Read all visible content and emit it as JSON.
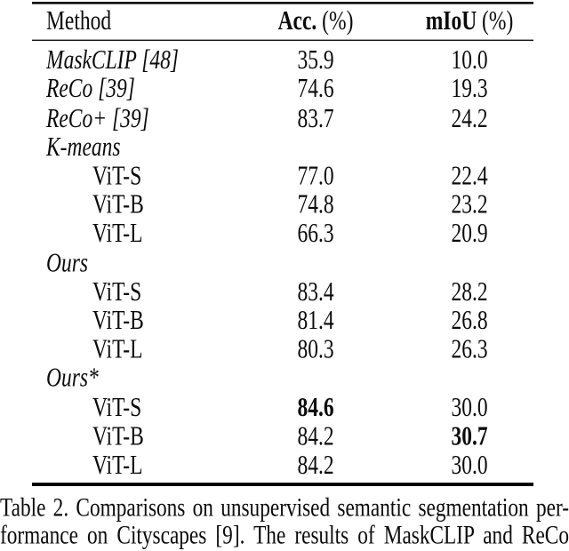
{
  "table": {
    "header": {
      "method": "Method",
      "acc_name": "Acc.",
      "acc_unit": " (%)",
      "miou_name": "mIoU",
      "miou_unit": " (%)"
    },
    "rows": [
      {
        "method": "MaskCLIP [48]",
        "acc": "35.9",
        "miou": "10.0"
      },
      {
        "method": "ReCo [39]",
        "acc": "74.6",
        "miou": "19.3"
      },
      {
        "method": "ReCo+ [39]",
        "acc": "83.7",
        "miou": "24.2"
      },
      {
        "method": "K-means",
        "acc": "",
        "miou": ""
      },
      {
        "method": "ViT-S",
        "acc": "77.0",
        "miou": "22.4"
      },
      {
        "method": "ViT-B",
        "acc": "74.8",
        "miou": "23.2"
      },
      {
        "method": "ViT-L",
        "acc": "66.3",
        "miou": "20.9"
      },
      {
        "method": "Ours",
        "acc": "",
        "miou": ""
      },
      {
        "method": "ViT-S",
        "acc": "83.4",
        "miou": "28.2"
      },
      {
        "method": "ViT-B",
        "acc": "81.4",
        "miou": "26.8"
      },
      {
        "method": "ViT-L",
        "acc": "80.3",
        "miou": "26.3"
      },
      {
        "method": "Ours*",
        "acc": "",
        "miou": ""
      },
      {
        "method": "ViT-S",
        "acc": "84.6",
        "miou": "30.0"
      },
      {
        "method": "ViT-B",
        "acc": "84.2",
        "miou": "30.7"
      },
      {
        "method": "ViT-L",
        "acc": "84.2",
        "miou": "30.0"
      }
    ]
  },
  "caption": {
    "line1": "Table 2. Comparisons on unsupervised semantic segmentation per-",
    "line2": "formance on Cityscapes [9]. The results of MaskCLIP and ReCo"
  }
}
